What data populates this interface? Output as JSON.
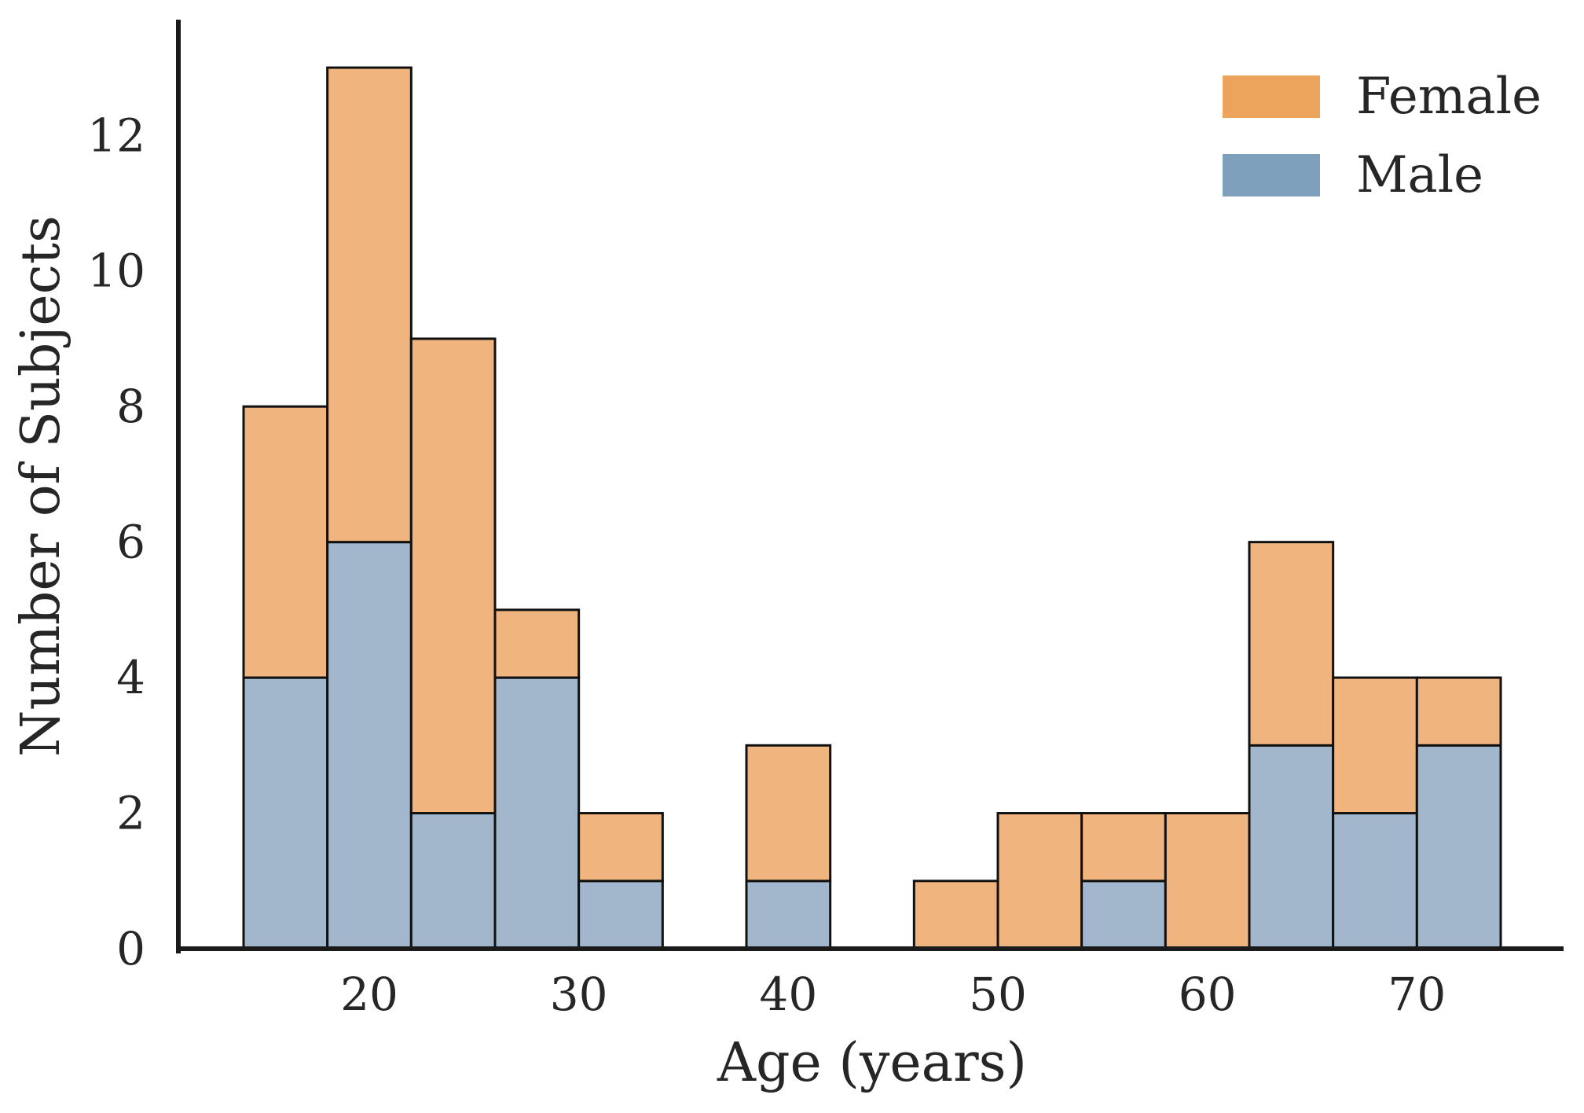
{
  "figure": {
    "background": "#ffffff"
  },
  "chart_data": {
    "type": "bar",
    "subtype": "stacked-histogram",
    "title": "",
    "xlabel": "Age (years)",
    "ylabel": "Number of Subjects",
    "bin_width_years": 4,
    "bin_starts": [
      14,
      18,
      22,
      26,
      30,
      34,
      38,
      42,
      46,
      50,
      54,
      58,
      62,
      66,
      70
    ],
    "series": [
      {
        "name": "Female",
        "values": [
          4,
          7,
          7,
          1,
          1,
          0,
          2,
          0,
          1,
          2,
          1,
          2,
          3,
          2,
          1
        ],
        "fill_color": "#F0B57E",
        "legend_color": "#ECA35C"
      },
      {
        "name": "Male",
        "values": [
          4,
          6,
          2,
          4,
          1,
          0,
          1,
          0,
          0,
          0,
          1,
          0,
          3,
          2,
          3
        ],
        "fill_color": "#A2B7CB",
        "legend_color": "#7FA0BC"
      }
    ],
    "stack_order_bottom_to_top": [
      "Male",
      "Female"
    ],
    "totals_per_bin": [
      8,
      13,
      9,
      5,
      2,
      0,
      3,
      0,
      1,
      2,
      2,
      2,
      6,
      4,
      4
    ],
    "xlim": [
      11,
      77
    ],
    "ylim": [
      0,
      13.65
    ],
    "x_ticks": [
      20,
      30,
      40,
      50,
      60,
      70
    ],
    "y_ticks": [
      0,
      2,
      4,
      6,
      8,
      10,
      12
    ],
    "grid": false,
    "legend": {
      "position": "upper-right",
      "entries": [
        "Female",
        "Male"
      ]
    },
    "colors": {
      "bar_edge": "#111111",
      "axis": "#1a1a1a",
      "text": "#262626"
    }
  }
}
